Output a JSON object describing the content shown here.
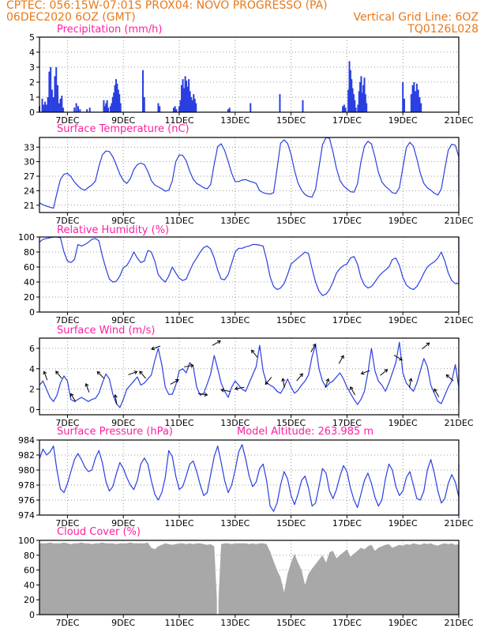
{
  "header": {
    "line1": "CPTEC:   056:15W-07:01S   PROX04: NOVO PROGRESSO (PA)",
    "line2_left": "06DEC2020 6OZ (GMT)",
    "line2_right": "Vertical Grid Line: 6OZ",
    "line3_right": "TQ0126L028"
  },
  "colors": {
    "header": "#e8781a",
    "title": "#ff1fa0",
    "line": "#2a3fe0",
    "cloud": "#a8a8a8",
    "grid": "#9a9a9a"
  },
  "x_axis": {
    "days": [
      7,
      9,
      11,
      13,
      15,
      17,
      19,
      21
    ],
    "labels": [
      "7DEC",
      "9DEC",
      "11DEC",
      "13DEC",
      "15DEC",
      "17DEC",
      "19DEC",
      "21DEC"
    ],
    "start_day": 6.0,
    "end_day": 21.0
  },
  "chart_data": [
    {
      "id": "precip",
      "type": "bar",
      "title": "Precipitation (mm/h)",
      "ylim": [
        0,
        5
      ],
      "yticks": [
        0,
        1,
        2,
        3,
        4,
        5
      ],
      "bar_groups": [
        {
          "from": 6.0,
          "to": 6.85,
          "vals": [
            0.4,
            0,
            0.9,
            0.5,
            0.7,
            0.5,
            1.0,
            2.7,
            3.0,
            1.5,
            1.0,
            2.4,
            3.0,
            1.8,
            0.6,
            0.9,
            1.1,
            0.3
          ]
        },
        {
          "from": 7.25,
          "to": 7.45,
          "vals": [
            0.3,
            0.6,
            0.4,
            0.2
          ]
        },
        {
          "from": 7.7,
          "to": 7.8,
          "vals": [
            0.2,
            0.3
          ]
        },
        {
          "from": 8.3,
          "to": 8.9,
          "vals": [
            0.8,
            0.4,
            0.6,
            0.8,
            0.3,
            0,
            0.4,
            0.6,
            1.0,
            1.3,
            1.8,
            2.2,
            1.9,
            1.5,
            1.2,
            0.6
          ]
        },
        {
          "from": 9.7,
          "to": 9.75,
          "vals": [
            2.8,
            1.0
          ]
        },
        {
          "from": 10.25,
          "to": 10.3,
          "vals": [
            0.6,
            0.4
          ]
        },
        {
          "from": 10.8,
          "to": 10.9,
          "vals": [
            0.3,
            0.4,
            0.2
          ]
        },
        {
          "from": 11.0,
          "to": 11.6,
          "vals": [
            0.4,
            0.8,
            1.8,
            2.2,
            1.6,
            2.4,
            2.1,
            1.7,
            2.2,
            1.4,
            1.0,
            0.8,
            1.2,
            0.9,
            0.6
          ]
        },
        {
          "from": 12.75,
          "to": 12.8,
          "vals": [
            0.2,
            0.3
          ]
        },
        {
          "from": 13.55,
          "to": 13.58,
          "vals": [
            0.6
          ]
        },
        {
          "from": 14.6,
          "to": 14.62,
          "vals": [
            1.2
          ]
        },
        {
          "from": 15.42,
          "to": 15.45,
          "vals": [
            0.8
          ]
        },
        {
          "from": 16.85,
          "to": 16.95,
          "vals": [
            0.4,
            0.5,
            0.3
          ]
        },
        {
          "from": 17.05,
          "to": 17.7,
          "vals": [
            1.5,
            3.4,
            2.8,
            2.2,
            1.6,
            1.2,
            0.8,
            0.3,
            0,
            0.5,
            1.4,
            2.0,
            2.4,
            1.3,
            1.8,
            2.3,
            1.2,
            0.6
          ]
        },
        {
          "from": 19.0,
          "to": 19.05,
          "vals": [
            2.0,
            0.9
          ]
        },
        {
          "from": 19.3,
          "to": 19.65,
          "vals": [
            1.2,
            1.8,
            2.0,
            1.4,
            1.9,
            1.5,
            1.0,
            0.6
          ]
        }
      ]
    },
    {
      "id": "temp",
      "type": "line",
      "title": "Surface Temperature (nC)",
      "ylim": [
        19.5,
        35
      ],
      "yticks": [
        21,
        24,
        27,
        30,
        33
      ],
      "t0": 6.0,
      "dt": 0.125,
      "values": [
        21.5,
        21.1,
        20.8,
        20.6,
        20.4,
        23.5,
        26.3,
        27.4,
        27.6,
        26.9,
        25.8,
        25.0,
        24.4,
        24.1,
        24.7,
        25.2,
        26.0,
        29.0,
        31.4,
        32.2,
        32.1,
        31.0,
        29.3,
        27.4,
        26.1,
        25.5,
        26.5,
        28.4,
        29.4,
        29.7,
        29.4,
        28.0,
        26.1,
        25.2,
        24.8,
        24.4,
        23.9,
        24.1,
        26.0,
        30.0,
        31.4,
        31.3,
        30.2,
        28.0,
        26.4,
        25.5,
        25.1,
        24.6,
        24.4,
        25.3,
        29.5,
        33.1,
        33.7,
        32.3,
        30.0,
        27.6,
        25.9,
        25.9,
        26.2,
        26.3,
        26.0,
        25.8,
        25.5,
        24.0,
        23.6,
        23.4,
        23.3,
        23.6,
        28.5,
        33.8,
        34.5,
        33.8,
        31.5,
        28.2,
        25.6,
        24.1,
        23.2,
        22.8,
        22.7,
        24.3,
        28.9,
        33.5,
        35.0,
        34.8,
        32.0,
        28.6,
        26.1,
        25.0,
        24.4,
        23.8,
        23.7,
        25.4,
        30.0,
        33.2,
        34.2,
        33.7,
        31.0,
        27.8,
        25.8,
        24.9,
        24.3,
        23.6,
        23.4,
        24.6,
        28.8,
        32.9,
        34.0,
        33.2,
        30.6,
        27.6,
        25.5,
        24.6,
        24.1,
        23.5,
        23.1,
        24.4,
        28.5,
        32.4,
        33.6,
        33.4,
        31.0,
        27.7,
        25.5,
        24.8,
        24.3,
        24.0,
        24.1,
        25.0,
        27.0,
        28.7,
        29.0,
        28.7,
        27.8,
        26.5,
        25.4,
        24.8,
        24.6,
        24.3,
        24.0,
        24.6,
        27.0,
        30.2,
        31.6,
        31.0,
        29.0,
        26.6,
        25.1,
        24.3,
        23.8,
        23.4,
        24.6,
        25.6,
        26.4,
        26.8,
        26.9,
        26.2,
        25.2,
        23.9,
        23.3,
        23.0,
        24.9,
        27.6,
        30.4,
        31.0,
        30.6,
        29.3,
        28.5,
        27.5,
        27.2
      ]
    },
    {
      "id": "rh",
      "type": "line",
      "title": "Relative Humidity (%)",
      "ylim": [
        0,
        100
      ],
      "yticks": [
        0,
        20,
        40,
        60,
        80,
        100
      ],
      "t0": 6.0,
      "dt": 0.125,
      "values": [
        93,
        97,
        98,
        99,
        100,
        100,
        99,
        80,
        68,
        66,
        70,
        90,
        88,
        90,
        93,
        97,
        98,
        95,
        75,
        58,
        44,
        40,
        41,
        48,
        59,
        62,
        70,
        80,
        72,
        66,
        68,
        82,
        80,
        68,
        50,
        44,
        40,
        48,
        60,
        52,
        45,
        42,
        44,
        55,
        65,
        72,
        80,
        86,
        88,
        84,
        72,
        56,
        44,
        43,
        50,
        65,
        80,
        85,
        85,
        87,
        88,
        90,
        90,
        89,
        88,
        70,
        47,
        34,
        30,
        32,
        38,
        50,
        64,
        68,
        72,
        76,
        80,
        78,
        58,
        40,
        28,
        22,
        24,
        30,
        40,
        52,
        58,
        62,
        64,
        72,
        74,
        64,
        46,
        36,
        32,
        34,
        40,
        47,
        52,
        56,
        60,
        70,
        72,
        62,
        46,
        36,
        32,
        30,
        34,
        42,
        52,
        60,
        64,
        67,
        72,
        80,
        68,
        52,
        42,
        38,
        38,
        44,
        52,
        55,
        58,
        65,
        85,
        72,
        70,
        62,
        58,
        54,
        48,
        48,
        52,
        60,
        66,
        70,
        74,
        78,
        66,
        46,
        40,
        40,
        44,
        50,
        58,
        66,
        72,
        86,
        96,
        100,
        90,
        76,
        60,
        50,
        52,
        60,
        72,
        78,
        80,
        84,
        88,
        84,
        66,
        46,
        42,
        48,
        58,
        66
      ]
    },
    {
      "id": "wind",
      "type": "line",
      "title": "Surface Wind (m/s)",
      "ylim": [
        -0.5,
        7
      ],
      "yticks": [
        0,
        2,
        4,
        6
      ],
      "t0": 6.0,
      "dt": 0.125,
      "values": [
        2.4,
        2.8,
        2.0,
        1.2,
        0.8,
        1.4,
        2.6,
        3.3,
        2.8,
        1.0,
        0.8,
        1.0,
        1.2,
        1.0,
        0.8,
        1.0,
        1.1,
        1.6,
        2.6,
        3.5,
        3.0,
        1.5,
        0.6,
        0.2,
        1.0,
        2.0,
        2.4,
        2.8,
        3.2,
        2.4,
        2.6,
        3.0,
        3.4,
        4.8,
        6.0,
        4.4,
        2.2,
        1.5,
        1.5,
        2.4,
        3.8,
        4.0,
        3.6,
        4.6,
        4.2,
        2.2,
        1.4,
        1.6,
        2.5,
        3.5,
        5.3,
        4.0,
        2.6,
        1.8,
        1.2,
        2.2,
        2.8,
        2.4,
        2.0,
        1.8,
        2.6,
        3.4,
        4.2,
        6.3,
        3.8,
        2.6,
        2.4,
        2.2,
        1.8,
        1.6,
        2.2,
        3.0,
        2.2,
        1.6,
        1.9,
        2.4,
        2.8,
        3.4,
        5.2,
        6.3,
        4.0,
        2.8,
        2.2,
        2.6,
        2.8,
        3.2,
        3.6,
        3.0,
        2.2,
        1.6,
        1.0,
        0.5,
        1.0,
        1.8,
        3.6,
        6.0,
        3.8,
        2.8,
        2.4,
        1.8,
        2.6,
        3.6,
        4.6,
        6.6,
        3.6,
        2.6,
        2.2,
        1.8,
        2.6,
        3.8,
        5.0,
        4.2,
        2.4,
        1.6,
        0.8,
        0.6,
        1.4,
        2.2,
        2.8,
        4.4,
        2.2,
        2.0,
        2.4,
        3.0,
        2.8,
        2.6,
        1.8,
        1.4,
        0.6,
        1.2,
        2.2,
        2.6,
        2.8,
        2.4,
        2.0,
        1.8,
        1.2,
        1.0,
        1.3,
        1.8,
        2.5,
        2.8,
        2.4,
        1.8,
        1.6,
        1.5,
        1.8,
        1.6,
        1.2,
        1.0,
        1.2,
        1.6,
        2.0,
        2.4,
        2.2,
        2.0,
        2.3,
        2.1,
        1.9,
        2.2,
        4.4,
        4.0,
        3.6,
        3.2,
        3.4,
        3.6
      ]
    },
    {
      "id": "pres",
      "type": "line",
      "title": "Surface Pressure (hPa)",
      "annotation": "Model Altitude: 263.985 m",
      "ylim": [
        974,
        984
      ],
      "yticks": [
        974,
        976,
        978,
        980,
        982,
        984
      ],
      "t0": 6.0,
      "dt": 0.125,
      "values": [
        981.5,
        982.8,
        982.0,
        982.4,
        983.2,
        980.0,
        977.5,
        977.0,
        978.2,
        979.8,
        981.4,
        982.2,
        981.4,
        980.4,
        979.8,
        980.0,
        981.6,
        982.6,
        981.0,
        978.5,
        977.2,
        977.8,
        979.5,
        981.0,
        980.2,
        979.0,
        978.0,
        977.4,
        978.6,
        980.8,
        981.6,
        980.8,
        978.6,
        976.8,
        976.0,
        977.0,
        979.0,
        982.6,
        981.8,
        979.2,
        977.4,
        977.8,
        979.2,
        980.8,
        981.2,
        979.8,
        978.0,
        976.6,
        977.0,
        979.4,
        981.8,
        983.2,
        981.0,
        978.6,
        977.0,
        978.0,
        980.0,
        982.4,
        983.4,
        981.5,
        979.2,
        977.8,
        978.4,
        980.2,
        980.8,
        978.6,
        975.2,
        974.5,
        975.6,
        978.0,
        979.8,
        978.8,
        976.6,
        975.4,
        976.8,
        978.6,
        979.2,
        977.6,
        975.2,
        975.6,
        977.8,
        980.2,
        979.6,
        977.2,
        976.2,
        977.4,
        979.2,
        980.6,
        979.8,
        977.6,
        976.0,
        975.0,
        976.8,
        978.6,
        979.6,
        978.2,
        976.4,
        975.2,
        976.0,
        978.8,
        980.8,
        980.0,
        977.8,
        976.6,
        977.2,
        979.0,
        979.8,
        978.0,
        976.2,
        976.0,
        977.2,
        980.0,
        981.4,
        979.6,
        977.2,
        975.6,
        976.2,
        978.2,
        979.4,
        978.4,
        976.4,
        975.8,
        977.8,
        979.6,
        980.8,
        979.4,
        977.4,
        976.6,
        977.6,
        979.2,
        979.8,
        978.6,
        976.8,
        976.0,
        977.0,
        978.6,
        979.4,
        978.4,
        976.6,
        975.4,
        976.0,
        977.8,
        978.8,
        977.8,
        976.4,
        975.2,
        974.5,
        975.8,
        977.6,
        978.8,
        978.6,
        977.2,
        976.2,
        975.6,
        976.6,
        978.6,
        979.4,
        978.2,
        976.4,
        975.0,
        975.4,
        977.4,
        979.6,
        978.8,
        977.0,
        975.8,
        975.2,
        973.8,
        974.0,
        976.8
      ]
    },
    {
      "id": "cloud",
      "type": "area",
      "title": "Cloud Cover (%)",
      "ylim": [
        0,
        100
      ],
      "yticks": [
        0,
        20,
        40,
        60,
        80,
        100
      ],
      "t0": 6.0,
      "dt": 0.125,
      "values": [
        96,
        96,
        96,
        97,
        96,
        96,
        96,
        97,
        96,
        95,
        96,
        96,
        97,
        96,
        96,
        95,
        96,
        96,
        97,
        96,
        96,
        96,
        95,
        96,
        96,
        96,
        97,
        96,
        96,
        96,
        96,
        97,
        90,
        88,
        92,
        94,
        96,
        95,
        94,
        95,
        96,
        96,
        95,
        96,
        95,
        96,
        96,
        95,
        94,
        95,
        92,
        0,
        95,
        96,
        96,
        95,
        96,
        96,
        96,
        96,
        95,
        96,
        95,
        96,
        96,
        95,
        85,
        72,
        60,
        50,
        30,
        55,
        70,
        82,
        70,
        60,
        40,
        55,
        62,
        68,
        74,
        80,
        70,
        84,
        86,
        76,
        80,
        84,
        88,
        78,
        82,
        86,
        90,
        88,
        92,
        94,
        86,
        90,
        92,
        94,
        95,
        90,
        92,
        94,
        93,
        95,
        94,
        96,
        95,
        94,
        96,
        95,
        96,
        94,
        93,
        95,
        96,
        95,
        96,
        94,
        95,
        96,
        95,
        95,
        96,
        95,
        94,
        96,
        95,
        96,
        95,
        95,
        96,
        94,
        95,
        96,
        95,
        93,
        94,
        95,
        96,
        94,
        95,
        96,
        95,
        95,
        94,
        95,
        96,
        94,
        95,
        96,
        95,
        95,
        94,
        96,
        95,
        95,
        96,
        95,
        94,
        96,
        95,
        96,
        94,
        93,
        92,
        90,
        88,
        80,
        60,
        30
      ]
    }
  ],
  "wind_arrows": {
    "note": "directions in degrees (math convention, 0 = east, 90 = north)",
    "t0": 6.25,
    "dt": 0.5,
    "directions": [
      110,
      130,
      120,
      110,
      135,
      100,
      20,
      130,
      200,
      30,
      10,
      -10,
      30,
      170,
      190,
      130,
      230,
      100,
      50,
      60,
      70,
      60,
      120,
      200,
      40,
      -30,
      80,
      40,
      120,
      140
    ]
  }
}
